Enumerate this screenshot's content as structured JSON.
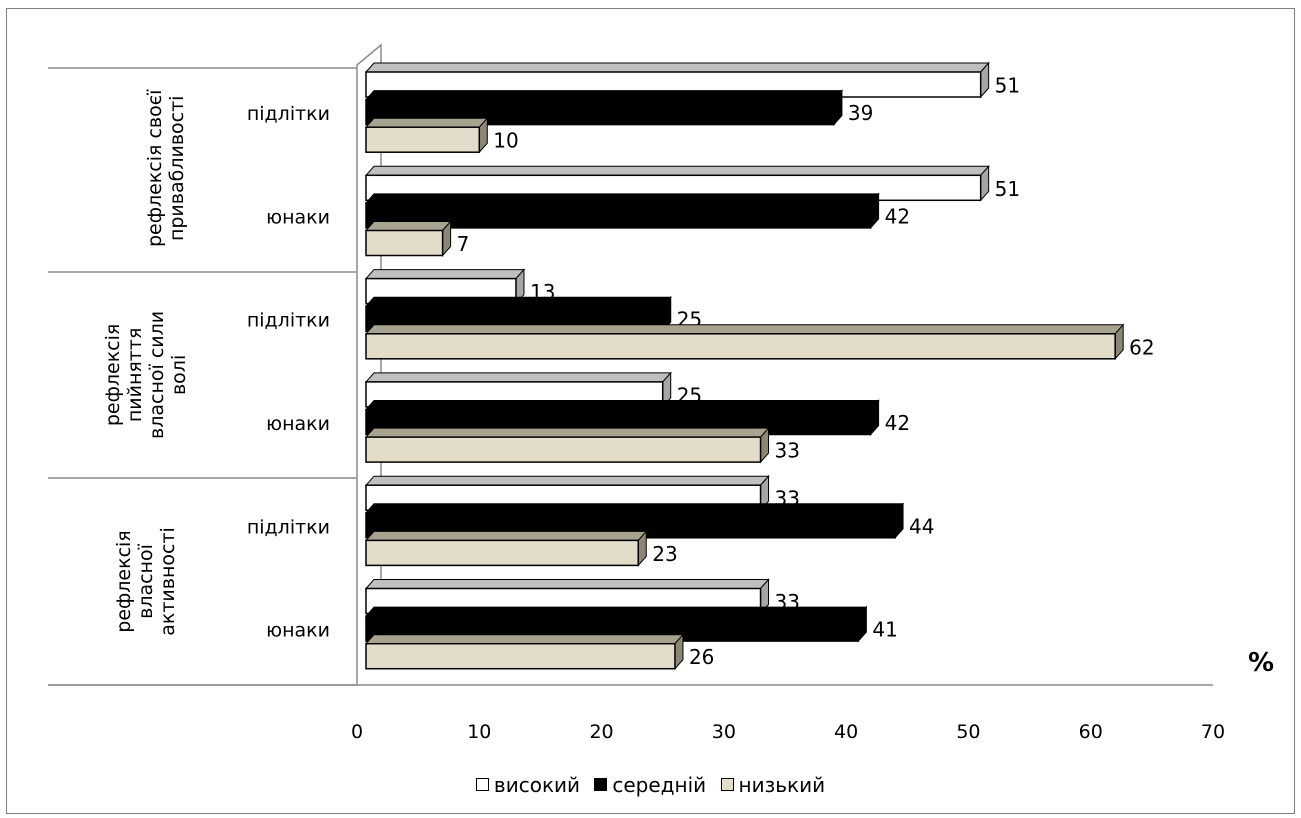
{
  "chart_data": {
    "type": "bar",
    "orientation": "horizontal",
    "style": "3d",
    "x_unit_label": "%",
    "xlim": [
      0,
      70
    ],
    "x_ticks": [
      0,
      10,
      20,
      30,
      40,
      50,
      60,
      70
    ],
    "legend_position": "bottom",
    "groups": [
      {
        "label": "рефлексія своєї привабливості",
        "label_lines": [
          "рефлексія своєї",
          "привабливості"
        ],
        "subgroups": [
          {
            "label": "підлітки",
            "values": [
              51,
              39,
              10
            ]
          },
          {
            "label": "юнаки",
            "values": [
              51,
              42,
              7
            ]
          }
        ]
      },
      {
        "label": "рефлексія пийняття власної сили волі",
        "label_lines": [
          "рефлексія",
          "пийняття",
          "власної сили",
          "волі"
        ],
        "subgroups": [
          {
            "label": "підлітки",
            "values": [
              13,
              25,
              62
            ]
          },
          {
            "label": "юнаки",
            "values": [
              25,
              42,
              33
            ]
          }
        ]
      },
      {
        "label": "рефлексія власної активності",
        "label_lines": [
          "рефлексія",
          "власної",
          "активності"
        ],
        "subgroups": [
          {
            "label": "підлітки",
            "values": [
              33,
              44,
              23
            ]
          },
          {
            "label": "юнаки",
            "values": [
              33,
              41,
              26
            ]
          }
        ]
      }
    ],
    "series": [
      {
        "name": "високий",
        "color": "#ffffff"
      },
      {
        "name": "середній",
        "color": "#000000"
      },
      {
        "name": "низький",
        "color": "#e2dcc8"
      }
    ]
  }
}
